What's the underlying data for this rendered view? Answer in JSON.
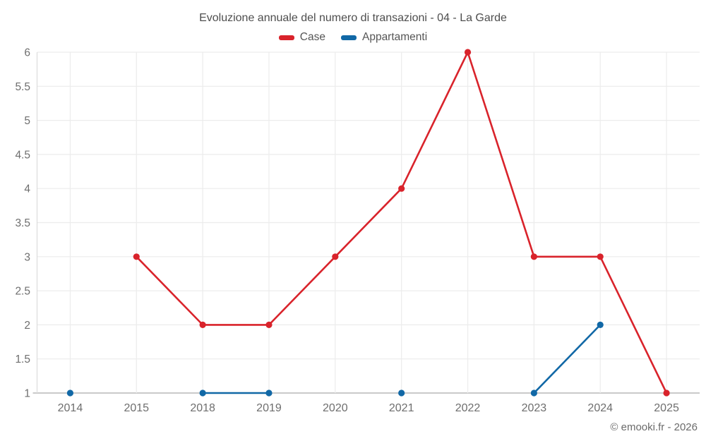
{
  "title": "Evoluzione annuale del numero di transazioni - 04 - La Garde",
  "footer": "© emooki.fr - 2026",
  "chart_data": {
    "type": "line",
    "title": "Evoluzione annuale del numero di transazioni - 04 - La Garde",
    "categories": [
      "2014",
      "2015",
      "2018",
      "2019",
      "2020",
      "2021",
      "2022",
      "2023",
      "2024",
      "2025"
    ],
    "series": [
      {
        "name": "Case",
        "color": "#d9232b",
        "values": [
          null,
          3,
          2,
          2,
          3,
          4,
          6,
          3,
          3,
          1
        ]
      },
      {
        "name": "Appartamenti",
        "color": "#1168a6",
        "values": [
          1,
          null,
          1,
          1,
          null,
          1,
          null,
          1,
          2,
          null
        ]
      }
    ],
    "xlabel": "",
    "ylabel": "",
    "ylim": [
      1,
      6
    ],
    "ytick_step": 0.5,
    "grid": true,
    "legend_position": "top",
    "grid_color": "#ececec",
    "axis_color": "#b9b9b9",
    "minor_axis_color": "#dcdcdc",
    "label_color": "#6e6e6e"
  }
}
